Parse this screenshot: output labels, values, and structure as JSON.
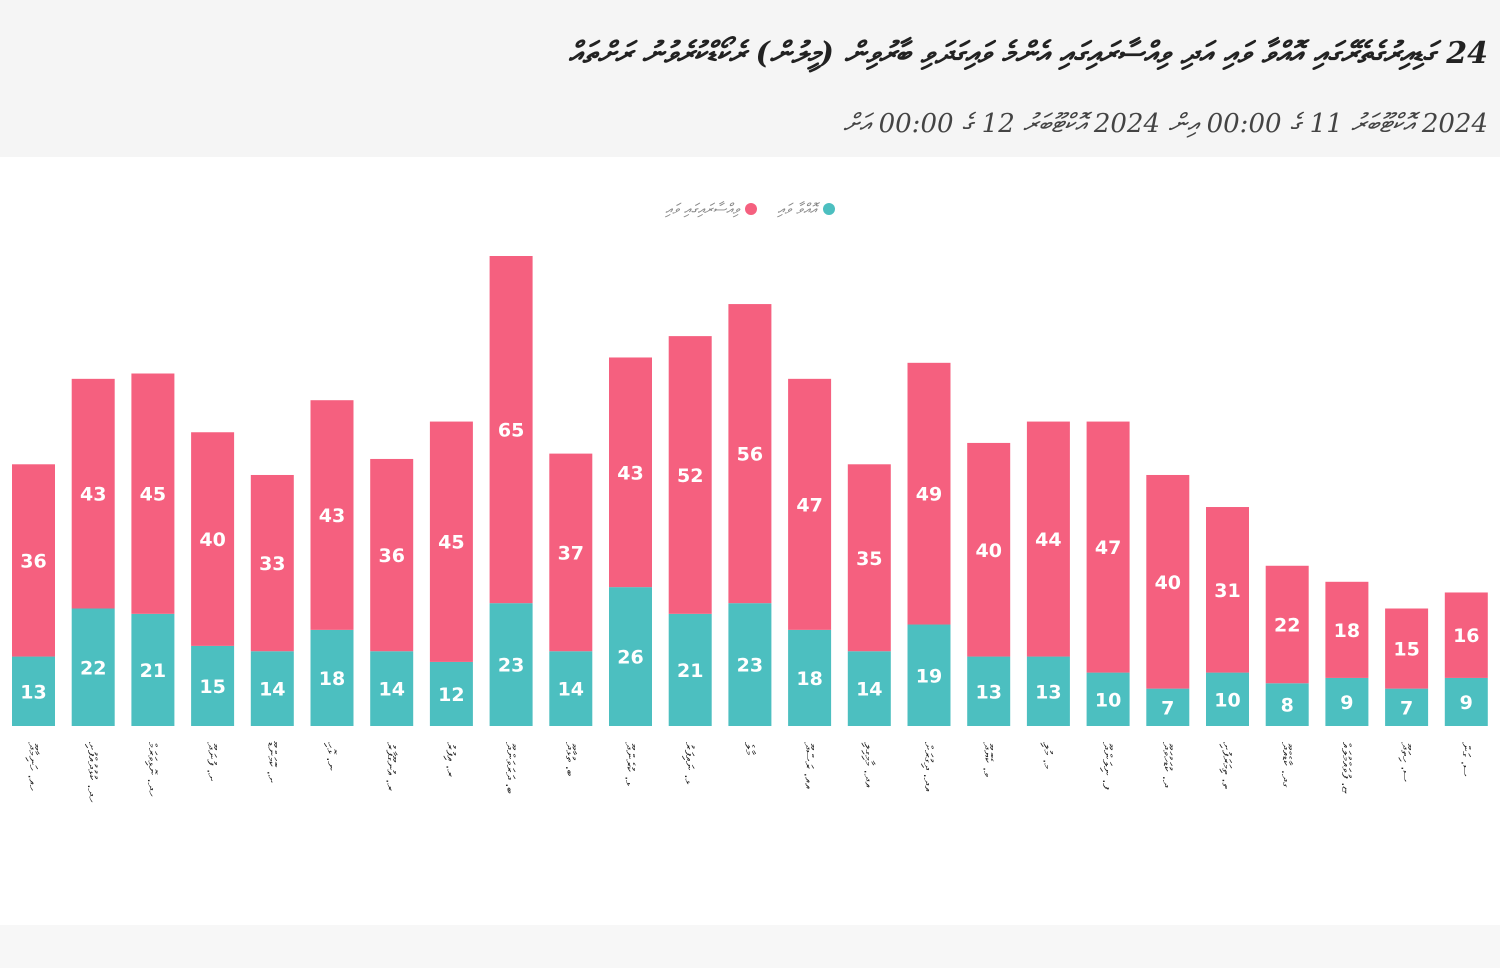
{
  "header": {
    "title": "24 ގަޑިއިރުގެތެރޭގައި އޮއްވާ ވައި އަދި ވިއްސާރައިގައި އެންމެ ވައިގަދަވި ބާރުވިން (މީލުން) ރެކޯޑްކުރެވުނު ރަށްތައް",
    "subtitle": "2024 އޮކްޓޫބަރު 11 ގެ 00:00 އިން 2024 އޮކްޓޫބަރު 12 ގެ 00:00 އަށް"
  },
  "colors": {
    "steady": "#4cbfc0",
    "gust": "#f5607f"
  },
  "chart_data": {
    "type": "bar",
    "stacked": true,
    "title": "24 ގަޑިއިރުގެތެރޭގައި އޮއްވާ ވައި އަދި ވިއްސާރައިގައި އެންމެ ވައިގަދަވި ބާރުވިން (މީލުން) ރެކޯޑްކުރެވުނު ރަށްތައް",
    "legend_position": "top",
    "grid": false,
    "categories": [
      "ހއ. ހަނިމާދޫ",
      "ހދ. ކުޅުދުއްފުށި",
      "ހދ. ނޮޅިވަރަމް",
      "ށ. ފުނަދޫ",
      "ށ. ކޮމަންޑޫ",
      "ނ. ޅޮހި",
      "ރ. އުނގޫފާރު",
      "ރ. އިފުރު",
      "ބ. ދަރަވަންދޫ",
      "ބ. ތުޅާދޫ",
      "ޅ. ކުރެންދޫ",
      "ޅ. ނައިފަރު",
      "މާލެ",
      "އއ. ރަސްދޫ",
      "އދ. މާމިގިލި",
      "އދ. ދިގުރަށް",
      "ވ. ކެޔޮދޫ",
      "މ. މުލި",
      "ފ. ނިލަންދޫ",
      "ދ. ކުޑަހުވަދޫ",
      "ތ. ތިމަރަފުށި",
      "ގދ. ކާޑެއްދޫ",
      "ޏ. ފުވައްމުލައް",
      "ސ. ހިތަދޫ",
      "ސ. ގަން"
    ],
    "series": [
      {
        "name": "އޮއްވާ ވައި",
        "values": [
          13,
          22,
          21,
          15,
          14,
          18,
          14,
          12,
          23,
          14,
          26,
          21,
          23,
          18,
          14,
          19,
          13,
          13,
          10,
          7,
          10,
          8,
          9,
          7,
          9
        ]
      },
      {
        "name": "ވިއްސާރައިގައި ވައި",
        "values": [
          36,
          43,
          45,
          40,
          33,
          43,
          36,
          45,
          65,
          37,
          43,
          52,
          56,
          47,
          35,
          49,
          40,
          44,
          47,
          40,
          31,
          22,
          18,
          15,
          16
        ]
      }
    ],
    "ylim": [
      0,
      88
    ]
  }
}
